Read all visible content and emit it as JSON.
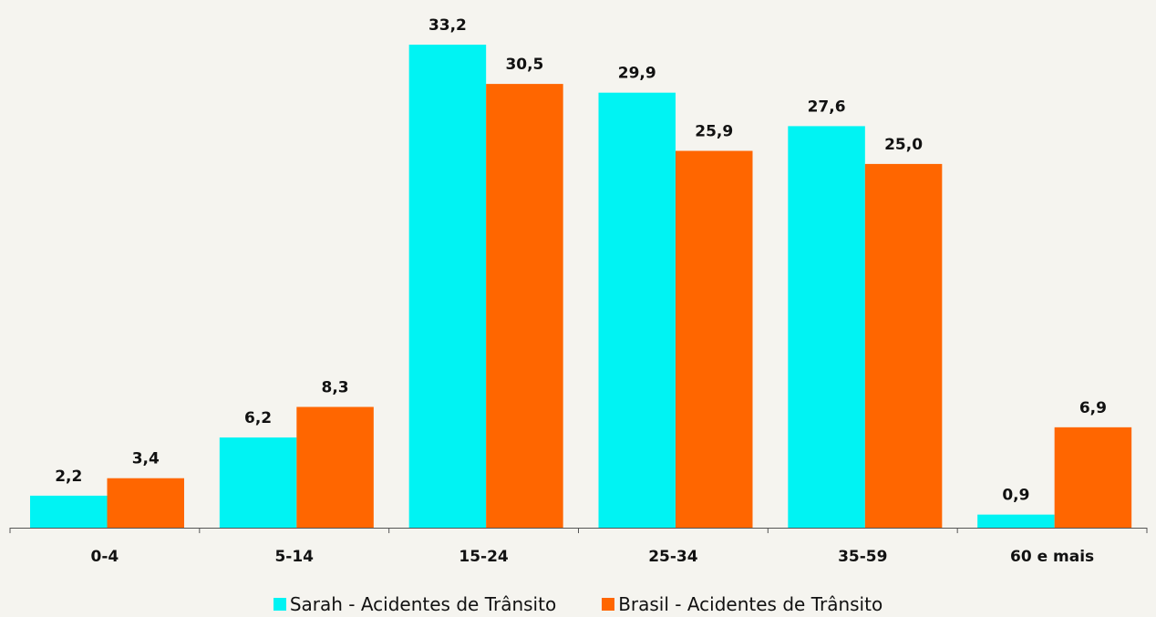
{
  "chart_data": {
    "type": "bar",
    "categories": [
      "0-4",
      "5-14",
      "15-24",
      "25-34",
      "35-59",
      "60 e mais"
    ],
    "series": [
      {
        "name": "Sarah - Acidentes de Trânsito",
        "color": "#00f3f3",
        "values": [
          2.2,
          6.2,
          33.2,
          29.9,
          27.6,
          0.9
        ],
        "labels": [
          "2,2",
          "6,2",
          "33,2",
          "29,9",
          "27,6",
          "0,9"
        ]
      },
      {
        "name": "Brasil - Acidentes de Trânsito",
        "color": "#ff6600",
        "values": [
          3.4,
          8.3,
          30.5,
          25.9,
          25.0,
          6.9
        ],
        "labels": [
          "3,4",
          "8,3",
          "30,5",
          "25,9",
          "25,0",
          "6,9"
        ]
      }
    ],
    "title": "",
    "xlabel": "",
    "ylabel": "",
    "ylim": [
      0,
      33.2
    ],
    "grid": false,
    "legend_position": "bottom"
  }
}
